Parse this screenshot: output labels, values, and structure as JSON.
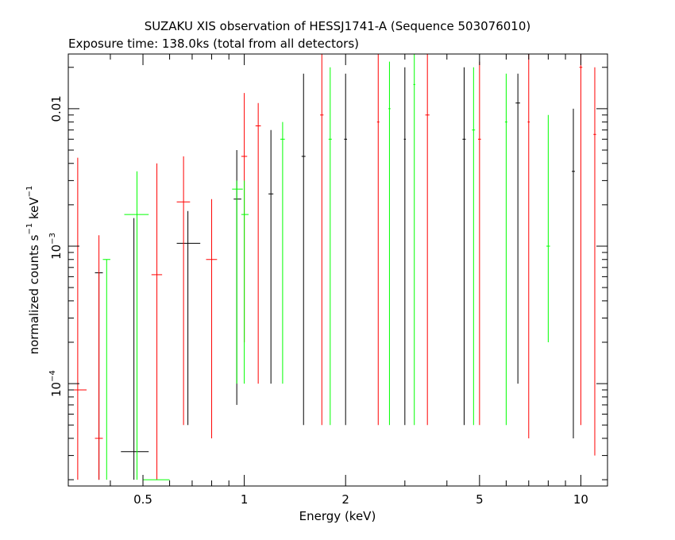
{
  "chart_data": {
    "type": "scatter",
    "title": "SUZAKU XIS observation of HESSJ1741-A (Sequence 503076010)",
    "subtitle": "Exposure time: 138.0ks (total from all detectors)",
    "xlabel": "Energy (keV)",
    "ylabel": {
      "prefix": "normalized counts s",
      "exp1": "−1",
      "mid": " keV",
      "exp2": "−1"
    },
    "x_scale": "log",
    "y_scale": "log",
    "xlim": [
      0.3,
      12
    ],
    "ylim": [
      1.8e-05,
      0.025
    ],
    "x_ticks": [
      {
        "value": 0.5,
        "label": "0.5"
      },
      {
        "value": 1,
        "label": "1"
      },
      {
        "value": 2,
        "label": "2"
      },
      {
        "value": 5,
        "label": "5"
      },
      {
        "value": 10,
        "label": "10"
      }
    ],
    "y_ticks": [
      {
        "value": 0.0001,
        "base": "10",
        "exp": "−4"
      },
      {
        "value": 0.001,
        "base": "10",
        "exp": "−3"
      },
      {
        "value": 0.01,
        "base": "",
        "exp": "",
        "label": "0.01"
      }
    ],
    "grid": false,
    "legend": "none",
    "series": [
      {
        "color": "#000000",
        "points": [
          {
            "x": 0.37,
            "y": 0.00064,
            "xlo": 0.36,
            "xhi": 0.38,
            "ylo": 2e-05,
            "yhi": 0.00064
          },
          {
            "x": 0.47,
            "y": 3.2e-05,
            "xlo": 0.43,
            "xhi": 0.52,
            "ylo": 2e-05,
            "yhi": 0.0016
          },
          {
            "x": 0.68,
            "y": 0.00105,
            "xlo": 0.63,
            "xhi": 0.74,
            "ylo": 5e-05,
            "yhi": 0.0018
          },
          {
            "x": 0.95,
            "y": 0.0022,
            "xlo": 0.93,
            "xhi": 0.98,
            "ylo": 7e-05,
            "yhi": 0.005
          },
          {
            "x": 1.2,
            "y": 0.0024,
            "xlo": 1.18,
            "xhi": 1.22,
            "ylo": 0.0001,
            "yhi": 0.007
          },
          {
            "x": 1.5,
            "y": 0.0045,
            "xlo": 1.48,
            "xhi": 1.52,
            "ylo": 5e-05,
            "yhi": 0.018
          },
          {
            "x": 2.0,
            "y": 0.006,
            "xlo": 1.98,
            "xhi": 2.02,
            "ylo": 5e-05,
            "yhi": 0.018
          },
          {
            "x": 3.0,
            "y": 0.006,
            "xlo": 2.98,
            "xhi": 3.02,
            "ylo": 5e-05,
            "yhi": 0.02
          },
          {
            "x": 4.5,
            "y": 0.006,
            "xlo": 4.45,
            "xhi": 4.55,
            "ylo": 5e-05,
            "yhi": 0.02
          },
          {
            "x": 6.5,
            "y": 0.011,
            "xlo": 6.4,
            "xhi": 6.6,
            "ylo": 0.0001,
            "yhi": 0.018
          },
          {
            "x": 9.5,
            "y": 0.0035,
            "xlo": 9.4,
            "xhi": 9.6,
            "ylo": 4e-05,
            "yhi": 0.01
          }
        ]
      },
      {
        "color": "#ff0000",
        "points": [
          {
            "x": 0.32,
            "y": 9e-05,
            "xlo": 0.31,
            "xhi": 0.34,
            "ylo": 2e-05,
            "yhi": 0.0044
          },
          {
            "x": 0.37,
            "y": 4e-05,
            "xlo": 0.36,
            "xhi": 0.38,
            "ylo": 2e-05,
            "yhi": 0.0012
          },
          {
            "x": 0.55,
            "y": 0.00062,
            "xlo": 0.53,
            "xhi": 0.57,
            "ylo": 2e-05,
            "yhi": 0.004
          },
          {
            "x": 0.66,
            "y": 0.0021,
            "xlo": 0.63,
            "xhi": 0.69,
            "ylo": 5e-05,
            "yhi": 0.0045
          },
          {
            "x": 0.8,
            "y": 0.0008,
            "xlo": 0.77,
            "xhi": 0.83,
            "ylo": 4e-05,
            "yhi": 0.0022
          },
          {
            "x": 1.0,
            "y": 0.0045,
            "xlo": 0.98,
            "xhi": 1.02,
            "ylo": 0.0002,
            "yhi": 0.013
          },
          {
            "x": 1.1,
            "y": 0.0075,
            "xlo": 1.08,
            "xhi": 1.12,
            "ylo": 0.0001,
            "yhi": 0.011
          },
          {
            "x": 1.7,
            "y": 0.009,
            "xlo": 1.68,
            "xhi": 1.72,
            "ylo": 5e-05,
            "yhi": 0.025
          },
          {
            "x": 2.5,
            "y": 0.008,
            "xlo": 2.48,
            "xhi": 2.52,
            "ylo": 5e-05,
            "yhi": 0.025
          },
          {
            "x": 3.5,
            "y": 0.009,
            "xlo": 3.45,
            "xhi": 3.55,
            "ylo": 5e-05,
            "yhi": 0.025
          },
          {
            "x": 5.0,
            "y": 0.006,
            "xlo": 4.95,
            "xhi": 5.05,
            "ylo": 5e-05,
            "yhi": 0.022
          },
          {
            "x": 7.0,
            "y": 0.008,
            "xlo": 6.95,
            "xhi": 7.05,
            "ylo": 4e-05,
            "yhi": 0.025
          },
          {
            "x": 10.0,
            "y": 0.02,
            "xlo": 9.9,
            "xhi": 10.1,
            "ylo": 5e-05,
            "yhi": 0.025
          },
          {
            "x": 11.0,
            "y": 0.0065,
            "xlo": 10.9,
            "xhi": 11.1,
            "ylo": 3e-05,
            "yhi": 0.02
          }
        ]
      },
      {
        "color": "#00ff00",
        "points": [
          {
            "x": 0.39,
            "y": 0.0008,
            "xlo": 0.38,
            "xhi": 0.4,
            "ylo": 2e-05,
            "yhi": 0.0008
          },
          {
            "x": 0.48,
            "y": 0.0017,
            "xlo": 0.44,
            "xhi": 0.52,
            "ylo": 2e-05,
            "yhi": 0.0035
          },
          {
            "x": 0.55,
            "y": 2e-05,
            "xlo": 0.5,
            "xhi": 0.6,
            "ylo": 2e-05,
            "yhi": 2e-05
          },
          {
            "x": 0.95,
            "y": 0.0026,
            "xlo": 0.92,
            "xhi": 0.99,
            "ylo": 0.0001,
            "yhi": 0.003
          },
          {
            "x": 1.0,
            "y": 0.0017,
            "xlo": 0.98,
            "xhi": 1.03,
            "ylo": 0.0001,
            "yhi": 0.003
          },
          {
            "x": 1.3,
            "y": 0.006,
            "xlo": 1.28,
            "xhi": 1.32,
            "ylo": 0.0001,
            "yhi": 0.008
          },
          {
            "x": 1.8,
            "y": 0.006,
            "xlo": 1.78,
            "xhi": 1.82,
            "ylo": 5e-05,
            "yhi": 0.02
          },
          {
            "x": 2.7,
            "y": 0.01,
            "xlo": 2.68,
            "xhi": 2.72,
            "ylo": 5e-05,
            "yhi": 0.022
          },
          {
            "x": 3.2,
            "y": 0.015,
            "xlo": 3.18,
            "xhi": 3.22,
            "ylo": 5e-05,
            "yhi": 0.025
          },
          {
            "x": 4.8,
            "y": 0.007,
            "xlo": 4.75,
            "xhi": 4.85,
            "ylo": 5e-05,
            "yhi": 0.02
          },
          {
            "x": 6.0,
            "y": 0.008,
            "xlo": 5.95,
            "xhi": 6.05,
            "ylo": 5e-05,
            "yhi": 0.018
          },
          {
            "x": 8.0,
            "y": 0.001,
            "xlo": 7.9,
            "xhi": 8.1,
            "ylo": 0.0002,
            "yhi": 0.009
          }
        ]
      }
    ]
  }
}
